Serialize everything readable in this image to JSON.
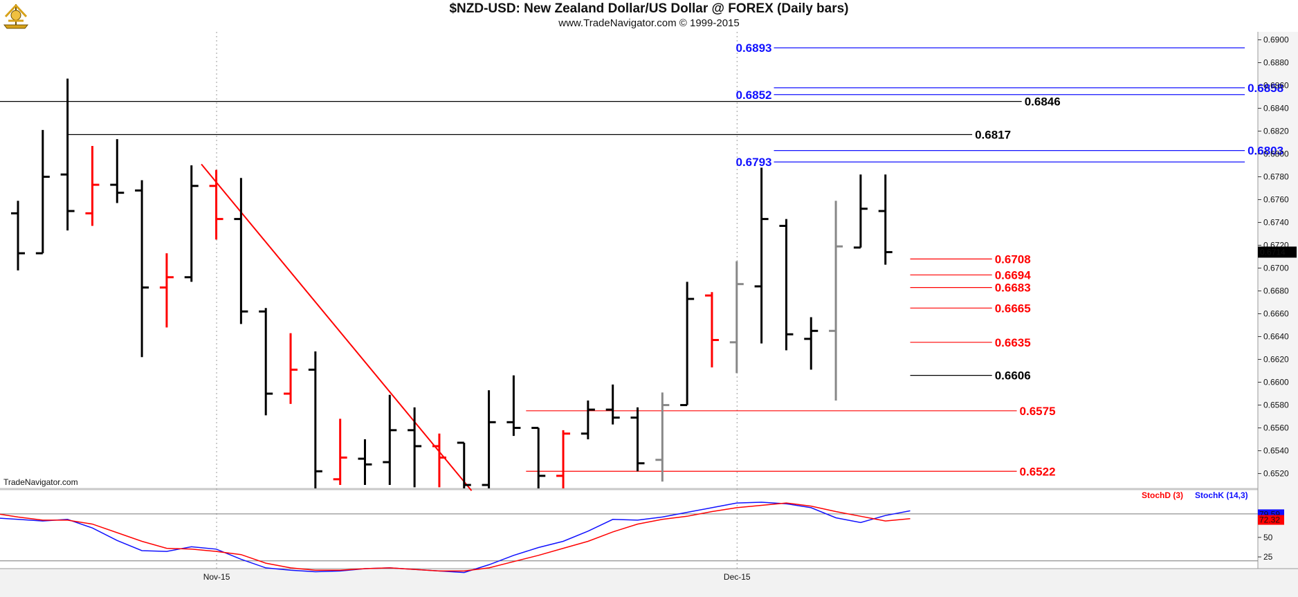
{
  "header": {
    "title": "$NZD-USD:  New Zealand Dollar/US Dollar @ FOREX  (Daily bars)",
    "subtitle": "www.TradeNavigator.com © 1999-2015",
    "watermark": "TradeNavigator.com"
  },
  "colors": {
    "up": "#000000",
    "down": "#ff0000",
    "neutral": "#888888",
    "blue": "#1010ff",
    "red": "#ff0000",
    "black": "#000000",
    "stochD": "#ff0000",
    "stochK": "#1010ff"
  },
  "chart_data": [
    {
      "type": "ohlc",
      "title": "$NZD-USD:  New Zealand Dollar/US Dollar @ FOREX  (Daily bars)",
      "ylim": [
        0.6507,
        0.6907
      ],
      "y_ticks": [
        0.69,
        0.688,
        0.686,
        0.684,
        0.682,
        0.68,
        0.678,
        0.676,
        0.674,
        0.672,
        0.67,
        0.668,
        0.666,
        0.664,
        0.662,
        0.66,
        0.658,
        0.656,
        0.654,
        0.652
      ],
      "y_tick_labels": [
        "0.6900",
        "0.6880",
        "0.6860",
        "0.6840",
        "0.6820",
        "0.6800",
        "0.6780",
        "0.6760",
        "0.6740",
        "0.6720",
        "0.6700",
        "0.6680",
        "0.6660",
        "0.6640",
        "0.6620",
        "0.6600",
        "0.6580",
        "0.6560",
        "0.6540",
        "0.6520"
      ],
      "x_labels": [
        {
          "label": "Nov-15",
          "bar": 8
        },
        {
          "label": "Dec-15",
          "bar": 29
        }
      ],
      "last_price": "0.6714",
      "bars": [
        {
          "o": 0.6748,
          "h": 0.6759,
          "l": 0.6698,
          "c": 0.6713,
          "col": "up"
        },
        {
          "o": 0.6713,
          "h": 0.6821,
          "l": 0.6713,
          "c": 0.678,
          "col": "up"
        },
        {
          "o": 0.6782,
          "h": 0.6866,
          "l": 0.6733,
          "c": 0.675,
          "col": "up"
        },
        {
          "o": 0.6748,
          "h": 0.6807,
          "l": 0.6737,
          "c": 0.6773,
          "col": "down"
        },
        {
          "o": 0.6773,
          "h": 0.6813,
          "l": 0.6757,
          "c": 0.6766,
          "col": "up"
        },
        {
          "o": 0.6768,
          "h": 0.6777,
          "l": 0.6622,
          "c": 0.6683,
          "col": "up"
        },
        {
          "o": 0.6683,
          "h": 0.6713,
          "l": 0.6648,
          "c": 0.6692,
          "col": "down"
        },
        {
          "o": 0.6692,
          "h": 0.679,
          "l": 0.6688,
          "c": 0.6772,
          "col": "up"
        },
        {
          "o": 0.6772,
          "h": 0.6786,
          "l": 0.6725,
          "c": 0.6743,
          "col": "down"
        },
        {
          "o": 0.6743,
          "h": 0.6779,
          "l": 0.6651,
          "c": 0.6662,
          "col": "up"
        },
        {
          "o": 0.6662,
          "h": 0.6665,
          "l": 0.6571,
          "c": 0.659,
          "col": "up"
        },
        {
          "o": 0.659,
          "h": 0.6643,
          "l": 0.6581,
          "c": 0.6611,
          "col": "down"
        },
        {
          "o": 0.6611,
          "h": 0.6627,
          "l": 0.6505,
          "c": 0.6522,
          "col": "up"
        },
        {
          "o": 0.6515,
          "h": 0.6568,
          "l": 0.651,
          "c": 0.6534,
          "col": "down"
        },
        {
          "o": 0.6533,
          "h": 0.655,
          "l": 0.651,
          "c": 0.6528,
          "col": "up"
        },
        {
          "o": 0.653,
          "h": 0.6589,
          "l": 0.651,
          "c": 0.6558,
          "col": "up"
        },
        {
          "o": 0.6558,
          "h": 0.6578,
          "l": 0.6508,
          "c": 0.6544,
          "col": "up"
        },
        {
          "o": 0.6544,
          "h": 0.6555,
          "l": 0.6508,
          "c": 0.6534,
          "col": "down"
        },
        {
          "o": 0.6547,
          "h": 0.6547,
          "l": 0.6505,
          "c": 0.651,
          "col": "up"
        },
        {
          "o": 0.651,
          "h": 0.6593,
          "l": 0.6505,
          "c": 0.6565,
          "col": "up"
        },
        {
          "o": 0.6565,
          "h": 0.6606,
          "l": 0.6553,
          "c": 0.656,
          "col": "up"
        },
        {
          "o": 0.656,
          "h": 0.656,
          "l": 0.6505,
          "c": 0.6518,
          "col": "up"
        },
        {
          "o": 0.6518,
          "h": 0.6558,
          "l": 0.6505,
          "c": 0.6555,
          "col": "down"
        },
        {
          "o": 0.6555,
          "h": 0.6584,
          "l": 0.655,
          "c": 0.6576,
          "col": "up"
        },
        {
          "o": 0.6576,
          "h": 0.6598,
          "l": 0.6563,
          "c": 0.6569,
          "col": "up"
        },
        {
          "o": 0.6569,
          "h": 0.6578,
          "l": 0.6522,
          "c": 0.6529,
          "col": "up"
        },
        {
          "o": 0.6532,
          "h": 0.6591,
          "l": 0.6513,
          "c": 0.658,
          "col": "neutral"
        },
        {
          "o": 0.658,
          "h": 0.6688,
          "l": 0.658,
          "c": 0.6673,
          "col": "up"
        },
        {
          "o": 0.6676,
          "h": 0.6679,
          "l": 0.6613,
          "c": 0.6637,
          "col": "down"
        },
        {
          "o": 0.6635,
          "h": 0.6706,
          "l": 0.6608,
          "c": 0.6686,
          "col": "neutral"
        },
        {
          "o": 0.6684,
          "h": 0.6788,
          "l": 0.6634,
          "c": 0.6743,
          "col": "up"
        },
        {
          "o": 0.6737,
          "h": 0.6743,
          "l": 0.6628,
          "c": 0.6642,
          "col": "up"
        },
        {
          "o": 0.6638,
          "h": 0.6657,
          "l": 0.6611,
          "c": 0.6645,
          "col": "up"
        },
        {
          "o": 0.6645,
          "h": 0.6759,
          "l": 0.6584,
          "c": 0.6719,
          "col": "neutral"
        },
        {
          "o": 0.6718,
          "h": 0.6782,
          "l": 0.6718,
          "c": 0.6752,
          "col": "up"
        },
        {
          "o": 0.675,
          "h": 0.6782,
          "l": 0.6703,
          "c": 0.6714,
          "col": "up"
        }
      ],
      "levels": [
        {
          "value": 0.6893,
          "label": "0.6893",
          "color": "blue",
          "side": "left",
          "from": 30.5,
          "to": 49.5
        },
        {
          "value": 0.6858,
          "label": "0.6858",
          "color": "blue",
          "side": "right",
          "from": 30.5,
          "to": 49.5
        },
        {
          "value": 0.6852,
          "label": "0.6852",
          "color": "blue",
          "side": "left",
          "from": 30.5,
          "to": 49.5
        },
        {
          "value": 0.6846,
          "label": "0.6846",
          "color": "black",
          "side": "right",
          "from": -3,
          "to": 40.5
        },
        {
          "value": 0.6817,
          "label": "0.6817",
          "color": "black",
          "side": "right",
          "from": 2,
          "to": 38.5
        },
        {
          "value": 0.6803,
          "label": "0.6803",
          "color": "blue",
          "side": "right",
          "from": 30.5,
          "to": 49.5
        },
        {
          "value": 0.6793,
          "label": "0.6793",
          "color": "blue",
          "side": "left",
          "from": 30.5,
          "to": 49.5
        },
        {
          "value": 0.6708,
          "label": "0.6708",
          "color": "red",
          "side": "right",
          "from": 36,
          "to": 39.3
        },
        {
          "value": 0.6694,
          "label": "0.6694",
          "color": "red",
          "side": "right",
          "from": 36,
          "to": 39.3
        },
        {
          "value": 0.6683,
          "label": "0.6683",
          "color": "red",
          "side": "right",
          "from": 36,
          "to": 39.3
        },
        {
          "value": 0.6665,
          "label": "0.6665",
          "color": "red",
          "side": "right",
          "from": 36,
          "to": 39.3
        },
        {
          "value": 0.6635,
          "label": "0.6635",
          "color": "red",
          "side": "right",
          "from": 36,
          "to": 39.3
        },
        {
          "value": 0.6606,
          "label": "0.6606",
          "color": "black",
          "side": "right",
          "from": 36,
          "to": 39.3
        },
        {
          "value": 0.6575,
          "label": "0.6575",
          "color": "red",
          "side": "right",
          "from": 20.5,
          "to": 40.3
        },
        {
          "value": 0.6522,
          "label": "0.6522",
          "color": "red",
          "side": "right",
          "from": 20.5,
          "to": 40.3
        }
      ],
      "trendline": {
        "from_bar": 7.4,
        "from_price": 0.6791,
        "to_bar": 18.3,
        "to_price": 0.6505
      }
    },
    {
      "type": "line",
      "legend": [
        "StochD (3)",
        "StochK (14,3)"
      ],
      "ylim": [
        10,
        110
      ],
      "y_ticks": [
        25,
        50
      ],
      "last_values": {
        "k": "79.59",
        "d": "72.32"
      },
      "series": [
        {
          "name": "StochK (14,3)",
          "key": "k",
          "values": [
            75,
            73,
            71,
            73,
            62,
            46,
            33,
            32,
            38,
            35,
            22,
            11,
            8,
            6,
            7,
            10,
            11,
            9,
            7,
            5,
            15,
            27,
            37,
            45,
            58,
            73,
            72,
            76,
            82,
            88,
            94,
            95,
            93,
            88,
            75,
            69,
            78,
            84
          ]
        },
        {
          "name": "StochD (3)",
          "key": "d",
          "values": [
            81,
            76,
            72,
            72,
            67,
            56,
            45,
            36,
            35,
            32,
            28,
            17,
            11,
            8,
            8,
            10,
            11,
            9,
            7,
            7,
            11,
            19,
            27,
            36,
            45,
            57,
            67,
            73,
            77,
            83,
            88,
            91,
            94,
            90,
            83,
            77,
            71,
            74
          ]
        }
      ],
      "xstart": -1
    }
  ]
}
